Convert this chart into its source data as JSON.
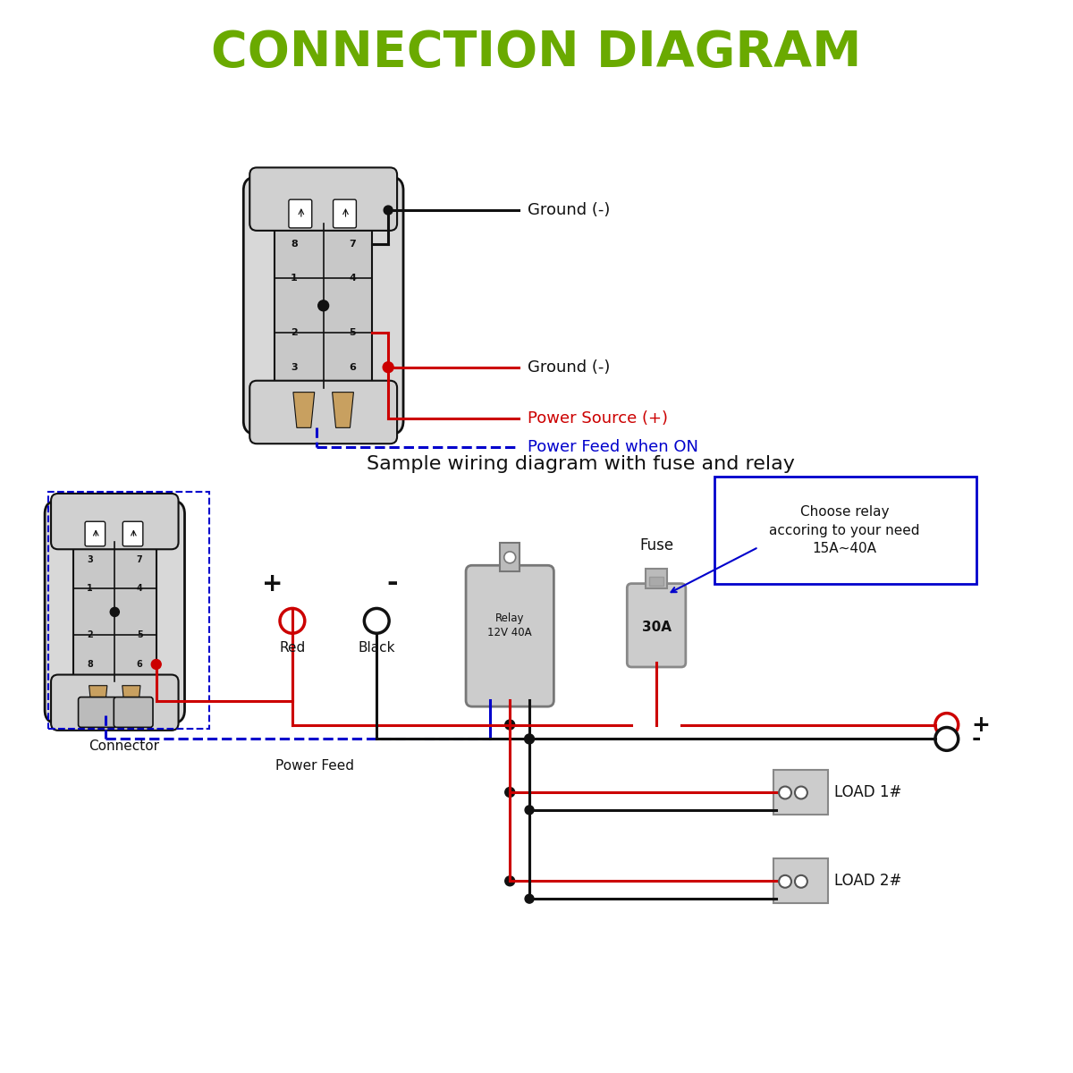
{
  "title": "CONNECTION DIAGRAM",
  "title_color": "#6aaa00",
  "title_fontsize": 40,
  "subtitle": "Sample wiring diagram with fuse and relay",
  "subtitle_fontsize": 16,
  "label_ground1": "Ground (-)",
  "label_ground2": "Ground (-)",
  "label_power_source": "Power Source (+)",
  "label_power_feed_on": "Power Feed when ON",
  "label_power_source_color": "#cc0000",
  "label_power_feed_color": "#0000cc",
  "label_connector": "Connector",
  "label_power_feed": "Power Feed",
  "label_red": "Red",
  "label_black": "Black",
  "label_relay": "Relay\n12V 40A",
  "label_fuse": "Fuse",
  "label_30a": "30A",
  "label_choose_relay": "Choose relay\naccoring to your need\n15A~40A",
  "label_load1": "LOAD 1#",
  "label_load2": "LOAD 2#",
  "label_plus": "+",
  "label_minus": "-",
  "red_color": "#cc0000",
  "blue_color": "#0000cc",
  "black_color": "#111111",
  "gray_color": "#888888",
  "wire_lw": 2.2
}
